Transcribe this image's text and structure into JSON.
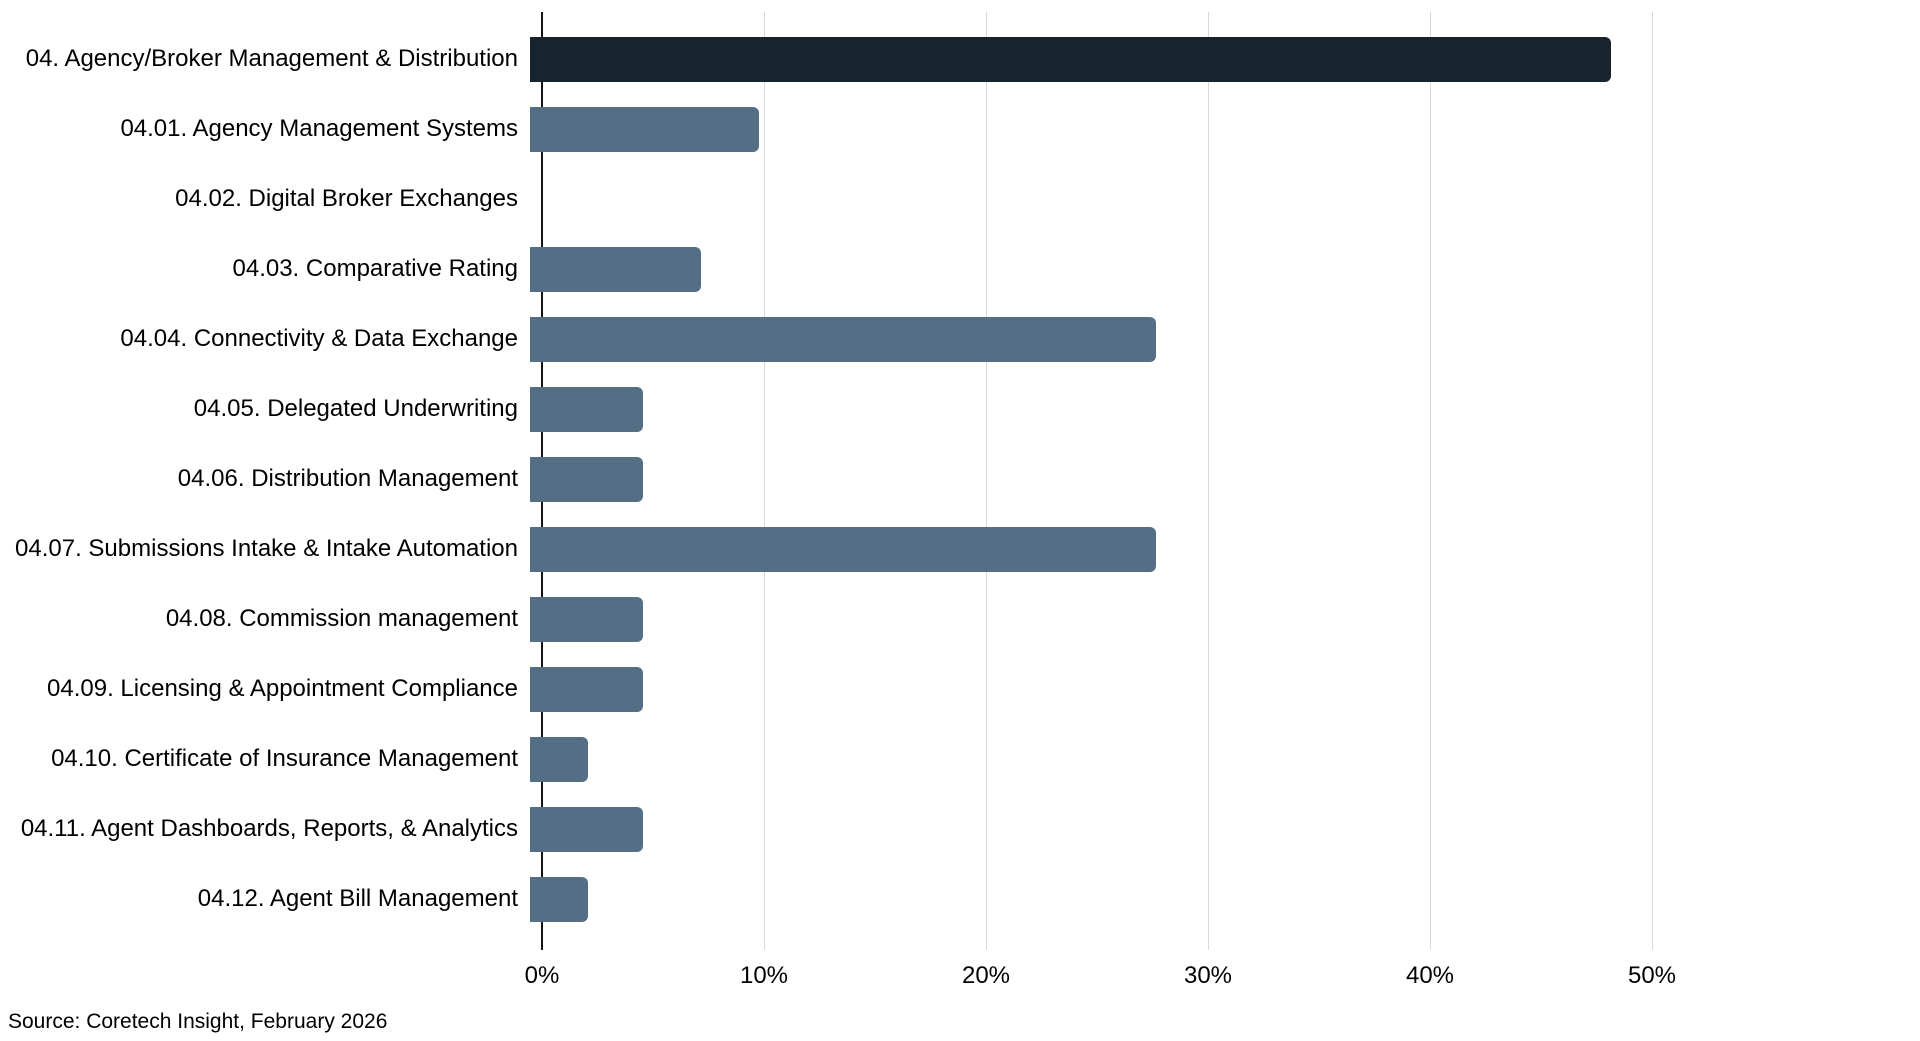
{
  "chart_data": {
    "type": "bar",
    "orientation": "horizontal",
    "title": "",
    "xlabel": "",
    "ylabel": "",
    "categories": [
      "04. Agency/Broker Management & Distribution",
      "04.01. Agency Management Systems",
      "04.02. Digital Broker Exchanges",
      "04.03. Comparative Rating",
      "04.04. Connectivity & Data Exchange",
      "04.05. Delegated Underwriting",
      "04.06. Distribution Management",
      "04.07. Submissions Intake & Intake Automation",
      "04.08. Commission management",
      "04.09. Licensing & Appointment Compliance",
      "04.10. Certificate of Insurance Management",
      "04.11. Agent Dashboards, Reports, & Analytics",
      "04.12. Agent Bill Management"
    ],
    "values": [
      48.7,
      10.3,
      0,
      7.7,
      28.2,
      5.1,
      5.1,
      28.2,
      5.1,
      5.1,
      2.6,
      5.1,
      2.6
    ],
    "value_unit": "%",
    "x_tick_labels": [
      "0%",
      "10%",
      "20%",
      "30%",
      "40%",
      "50%"
    ],
    "x_tick_values": [
      0,
      10,
      20,
      30,
      40,
      50
    ],
    "xlim": [
      0,
      62
    ],
    "grid": "vertical-only",
    "legend": "none",
    "highlight_index": 0,
    "colors": {
      "highlight_bar": "#17242e",
      "bar": "#546e86",
      "gridline": "#d8d8d8",
      "axis": "#141414",
      "text": "#000000",
      "background": "#ffffff"
    },
    "source": "Source: Coretech Insight, February 2026"
  }
}
